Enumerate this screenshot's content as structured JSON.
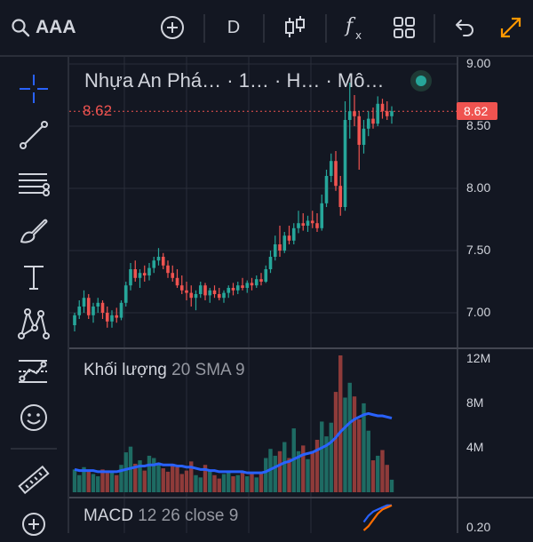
{
  "toolbar": {
    "symbol": "AAA",
    "interval": "D",
    "icons": [
      "search-icon",
      "add-symbol-icon",
      "candles-icon",
      "indicators-icon",
      "layout-icon",
      "undo-icon",
      "fullscreen-icon"
    ]
  },
  "drawing_tools": [
    "crosshair-icon",
    "trend-line-icon",
    "fib-icon",
    "brush-icon",
    "text-icon",
    "pattern-icon",
    "forecast-icon",
    "emoji-icon",
    "ruler-icon",
    "zoom-in-icon"
  ],
  "colors": {
    "up": "#26a69a",
    "down": "#ef5350",
    "sma": "#2962ff",
    "macd": "#2962ff",
    "signal": "#ff6d00",
    "accent": "#ff9800",
    "live": "#26a69a"
  },
  "main_pane": {
    "legend": "Nhựa An Phá… · 1… · H… · Mô…",
    "last_price": "8.62",
    "price_ticks": [
      "9.00",
      "8.50",
      "8.00",
      "7.50",
      "7.00"
    ],
    "chart_data": {
      "type": "candlestick",
      "ylim": [
        6.8,
        9.0
      ],
      "ohlc": [
        [
          6.9,
          7.0,
          6.85,
          6.98
        ],
        [
          6.98,
          7.1,
          6.95,
          7.05
        ],
        [
          7.05,
          7.18,
          7.0,
          7.12
        ],
        [
          7.12,
          7.15,
          6.95,
          6.98
        ],
        [
          6.98,
          7.08,
          6.92,
          7.05
        ],
        [
          7.05,
          7.12,
          7.0,
          7.08
        ],
        [
          7.08,
          7.1,
          6.95,
          7.0
        ],
        [
          7.0,
          7.05,
          6.88,
          6.93
        ],
        [
          6.93,
          7.02,
          6.88,
          6.98
        ],
        [
          6.98,
          7.04,
          6.92,
          6.96
        ],
        [
          6.96,
          7.1,
          6.94,
          7.08
        ],
        [
          7.08,
          7.25,
          7.05,
          7.22
        ],
        [
          7.22,
          7.4,
          7.18,
          7.35
        ],
        [
          7.35,
          7.42,
          7.25,
          7.28
        ],
        [
          7.28,
          7.35,
          7.2,
          7.32
        ],
        [
          7.32,
          7.38,
          7.25,
          7.3
        ],
        [
          7.3,
          7.4,
          7.26,
          7.36
        ],
        [
          7.36,
          7.45,
          7.32,
          7.42
        ],
        [
          7.42,
          7.52,
          7.38,
          7.45
        ],
        [
          7.45,
          7.48,
          7.35,
          7.38
        ],
        [
          7.38,
          7.42,
          7.28,
          7.32
        ],
        [
          7.32,
          7.38,
          7.25,
          7.28
        ],
        [
          7.28,
          7.35,
          7.2,
          7.22
        ],
        [
          7.22,
          7.3,
          7.15,
          7.18
        ],
        [
          7.18,
          7.25,
          7.1,
          7.16
        ],
        [
          7.16,
          7.22,
          7.05,
          7.12
        ],
        [
          7.12,
          7.18,
          7.02,
          7.15
        ],
        [
          7.15,
          7.25,
          7.12,
          7.22
        ],
        [
          7.22,
          7.24,
          7.1,
          7.14
        ],
        [
          7.14,
          7.2,
          7.08,
          7.18
        ],
        [
          7.18,
          7.22,
          7.12,
          7.15
        ],
        [
          7.15,
          7.2,
          7.1,
          7.12
        ],
        [
          7.12,
          7.18,
          7.08,
          7.16
        ],
        [
          7.16,
          7.22,
          7.12,
          7.2
        ],
        [
          7.2,
          7.24,
          7.14,
          7.18
        ],
        [
          7.18,
          7.25,
          7.15,
          7.22
        ],
        [
          7.22,
          7.28,
          7.18,
          7.2
        ],
        [
          7.2,
          7.26,
          7.16,
          7.24
        ],
        [
          7.24,
          7.28,
          7.18,
          7.22
        ],
        [
          7.22,
          7.3,
          7.2,
          7.27
        ],
        [
          7.27,
          7.32,
          7.22,
          7.25
        ],
        [
          7.25,
          7.38,
          7.24,
          7.35
        ],
        [
          7.35,
          7.5,
          7.32,
          7.45
        ],
        [
          7.45,
          7.62,
          7.42,
          7.55
        ],
        [
          7.55,
          7.7,
          7.45,
          7.5
        ],
        [
          7.5,
          7.65,
          7.48,
          7.62
        ],
        [
          7.62,
          7.7,
          7.55,
          7.58
        ],
        [
          7.58,
          7.72,
          7.55,
          7.68
        ],
        [
          7.68,
          7.82,
          7.64,
          7.72
        ],
        [
          7.72,
          7.8,
          7.66,
          7.7
        ],
        [
          7.7,
          7.78,
          7.65,
          7.74
        ],
        [
          7.74,
          7.82,
          7.68,
          7.72
        ],
        [
          7.72,
          7.8,
          7.65,
          7.68
        ],
        [
          7.68,
          7.95,
          7.66,
          7.88
        ],
        [
          7.88,
          8.15,
          7.85,
          8.1
        ],
        [
          8.1,
          8.28,
          8.05,
          8.22
        ],
        [
          8.22,
          8.3,
          7.98,
          8.02
        ],
        [
          8.02,
          8.1,
          7.78,
          7.85
        ],
        [
          7.85,
          8.7,
          7.82,
          8.55
        ],
        [
          8.55,
          8.85,
          8.4,
          8.62
        ],
        [
          8.62,
          8.75,
          8.5,
          8.58
        ],
        [
          8.58,
          8.62,
          8.15,
          8.35
        ],
        [
          8.35,
          8.55,
          8.28,
          8.48
        ],
        [
          8.48,
          8.62,
          8.42,
          8.56
        ],
        [
          8.56,
          8.65,
          8.48,
          8.52
        ],
        [
          8.52,
          8.74,
          8.5,
          8.68
        ],
        [
          8.68,
          8.72,
          8.56,
          8.62
        ],
        [
          8.62,
          8.7,
          8.55,
          8.58
        ],
        [
          8.58,
          8.66,
          8.52,
          8.62
        ]
      ]
    }
  },
  "volume_pane": {
    "legend_title": "Khối lượng",
    "legend_params": "20 SMA 9",
    "ticks": [
      "12M",
      "8M",
      "4M"
    ],
    "chart_data": {
      "type": "bar",
      "ylim": [
        0,
        12000000
      ],
      "values": [
        2.0,
        1.5,
        2.2,
        1.8,
        1.6,
        1.4,
        2.0,
        1.7,
        1.9,
        1.5,
        2.4,
        3.5,
        4.0,
        2.5,
        2.8,
        1.9,
        3.2,
        3.0,
        2.6,
        2.1,
        1.8,
        2.5,
        2.2,
        1.6,
        1.9,
        2.7,
        1.5,
        1.3,
        2.4,
        1.9,
        1.5,
        1.2,
        1.6,
        1.8,
        1.4,
        1.5,
        1.8,
        1.4,
        1.6,
        1.3,
        1.8,
        3.0,
        3.8,
        3.2,
        3.6,
        4.4,
        3.0,
        5.6,
        3.6,
        4.1,
        2.9,
        3.6,
        4.6,
        6.2,
        4.9,
        6.1,
        8.8,
        12.0,
        8.3,
        9.6,
        8.4,
        6.4,
        7.8,
        5.4,
        2.8,
        3.2,
        3.7,
        2.4,
        1.1
      ],
      "sma": [
        2.0,
        1.9,
        1.9,
        1.9,
        1.9,
        1.8,
        1.8,
        1.8,
        1.8,
        1.8,
        1.9,
        2.0,
        2.1,
        2.2,
        2.3,
        2.3,
        2.4,
        2.4,
        2.5,
        2.4,
        2.4,
        2.4,
        2.3,
        2.3,
        2.2,
        2.2,
        2.1,
        2.0,
        2.0,
        1.9,
        1.9,
        1.8,
        1.8,
        1.8,
        1.8,
        1.8,
        1.8,
        1.7,
        1.7,
        1.7,
        1.7,
        1.8,
        2.0,
        2.2,
        2.4,
        2.6,
        2.7,
        2.9,
        3.1,
        3.3,
        3.4,
        3.5,
        3.7,
        3.9,
        4.1,
        4.4,
        4.8,
        5.3,
        5.7,
        6.1,
        6.4,
        6.6,
        6.8,
        6.9,
        6.8,
        6.7,
        6.7,
        6.6,
        6.5
      ]
    }
  },
  "macd_pane": {
    "legend_title": "MACD",
    "legend_params": "12 26 close 9",
    "ticks": [
      "0.20"
    ],
    "chart_data": {
      "type": "line",
      "ylim": [
        0.15,
        0.32
      ],
      "series": [
        {
          "values": [
            0.22,
            0.25,
            0.27,
            0.28,
            0.29,
            0.3,
            0.3
          ]
        },
        {
          "values": [
            0.18,
            0.2,
            0.23,
            0.26,
            0.28,
            0.29,
            0.3
          ]
        }
      ]
    }
  }
}
